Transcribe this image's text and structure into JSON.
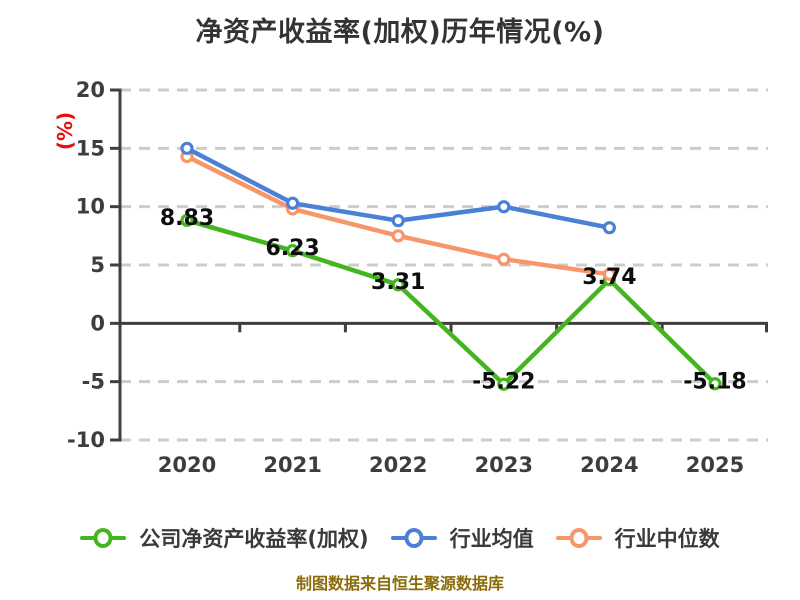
{
  "caption": "制图数据来自恒生聚源数据库",
  "chart_data": {
    "type": "line",
    "title": "净资产收益率(加权)历年情况(%)",
    "xlabel": "",
    "ylabel": "(%)",
    "categories": [
      "2020",
      "2021",
      "2022",
      "2023",
      "2024",
      "2025"
    ],
    "ylim": [
      -10,
      20
    ],
    "yticks": [
      -10,
      -5,
      0,
      5,
      10,
      15,
      20
    ],
    "grid": "horizontal-dashed",
    "legend_position": "bottom",
    "series": [
      {
        "name": "公司净资产收益率(加权)",
        "color": "#42b51f",
        "values": [
          8.83,
          6.23,
          3.31,
          -5.22,
          3.74,
          -5.18
        ],
        "point_labels": [
          "8.83",
          "6.23",
          "3.31",
          "-5.22",
          "3.74",
          "-5.18"
        ]
      },
      {
        "name": "行业均值",
        "color": "#4a80d5",
        "values": [
          15.0,
          10.3,
          8.8,
          10.0,
          8.2,
          null
        ]
      },
      {
        "name": "行业中位数",
        "color": "#f69669",
        "values": [
          14.3,
          9.8,
          7.5,
          5.5,
          4.2,
          null
        ]
      }
    ],
    "colors": {
      "title_text": "#333333",
      "tick_text": "#3d3d3d",
      "axis_line": "#3f3f3f",
      "gridline": "#cccccc",
      "data_label_text": "#0d0d0d",
      "y_axis_title": "#e60e0e",
      "caption_text": "#8a6d0a",
      "background": "#ffffff"
    }
  }
}
